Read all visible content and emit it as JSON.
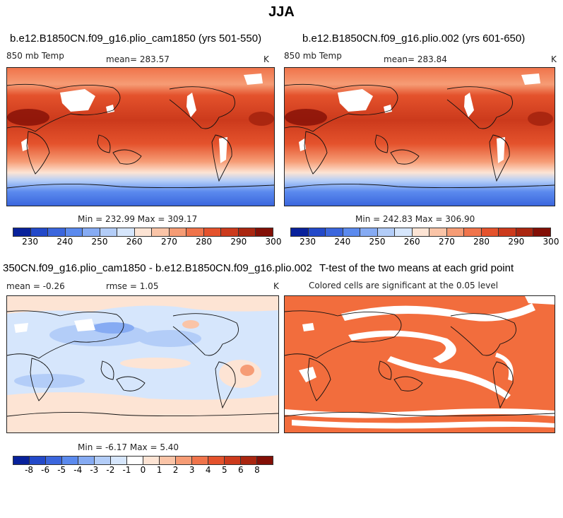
{
  "figure_title": "JJA",
  "panels": {
    "top_left": {
      "title": "b.e12.B1850CN.f09_g16.plio_cam1850 (yrs 501-550)",
      "variable": "850 mb Temp",
      "mean_label": "mean=  283.57",
      "units": "K",
      "minmax_label": "Min = 232.99 Max = 309.17"
    },
    "top_right": {
      "title": "b.e12.B1850CN.f09_g16.plio.002 (yrs 601-650)",
      "variable": "850 mb Temp",
      "mean_label": "mean=  283.84",
      "units": "K",
      "minmax_label": "Min = 242.83 Max = 306.90"
    },
    "bottom_left": {
      "title": "350CN.f09_g16.plio_cam1850 - b.e12.B1850CN.f09_g16.plio.002",
      "mean_label": "mean =   -0.26",
      "rmse_label": "rmse =    1.05",
      "units": "K",
      "minmax_label": "Min =   -6.17 Max =    5.40"
    },
    "bottom_right": {
      "title": "T-test of the two means at each grid point",
      "subtitle": "Colored cells are significant at the 0.05 level"
    }
  },
  "colorbars": {
    "temperature": {
      "colors": [
        "#08219b",
        "#2349c9",
        "#3b66dd",
        "#5b8aee",
        "#86abf3",
        "#b3cdf8",
        "#d6e6fc",
        "#fde4d4",
        "#fac4a7",
        "#f69c75",
        "#f0744b",
        "#e4522c",
        "#cc3a1c",
        "#aa2610",
        "#830f06"
      ],
      "ticks": [
        "230",
        "240",
        "250",
        "260",
        "270",
        "280",
        "290",
        "300"
      ]
    },
    "difference": {
      "colors": [
        "#08219b",
        "#2349c9",
        "#3b66dd",
        "#5b8aee",
        "#86abf3",
        "#b3cdf8",
        "#d6e6fc",
        "#ffffff",
        "#fde4d4",
        "#fac4a7",
        "#f69c75",
        "#f0744b",
        "#e4522c",
        "#cc3a1c",
        "#aa2610",
        "#830f06"
      ],
      "ticks": [
        "-8",
        "-6",
        "-5",
        "-4",
        "-3",
        "-2",
        "-1",
        "0",
        "1",
        "2",
        "3",
        "4",
        "5",
        "6",
        "8"
      ]
    }
  },
  "significance_color": "#f26d3d"
}
